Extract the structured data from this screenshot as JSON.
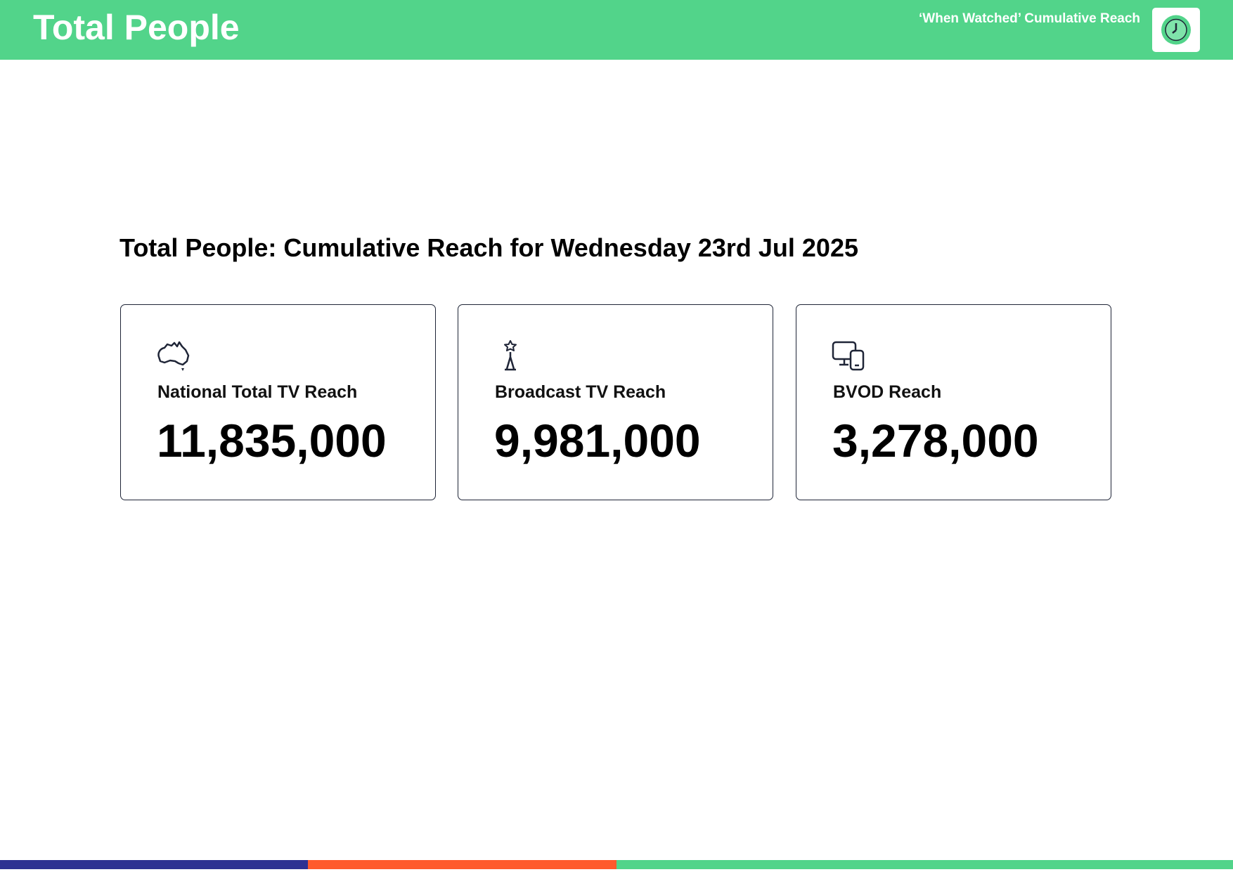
{
  "header": {
    "title": "Total People",
    "subtitle": "‘When Watched’ Cumulative Reach"
  },
  "heading": "Total People: Cumulative Reach for Wednesday 23rd Jul 2025",
  "cards": [
    {
      "label": "National Total TV Reach",
      "value": "11,835,000"
    },
    {
      "label": "Broadcast TV Reach",
      "value": "9,981,000"
    },
    {
      "label": "BVOD Reach",
      "value": "3,278,000"
    }
  ]
}
